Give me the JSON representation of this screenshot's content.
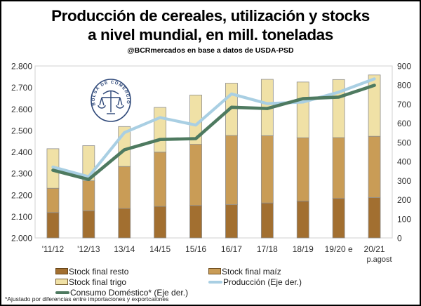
{
  "header": {
    "title_line1": "Producción de cereales, utilización y stocks",
    "title_line2": "a nivel mundial, en mill. toneladas",
    "subtitle": "@BCRmercados en base a datos de USDA-PSD"
  },
  "logo": {
    "ring_text": "BOLSA DE COMERCIO DE ROSARIO",
    "color": "#2d4778"
  },
  "chart_data": {
    "type": "bar",
    "subtype": "stacked bars (right axis) + two lines (left axis)",
    "title": "Producción de cereales, utilización y stocks a nivel mundial, en mill. toneladas",
    "source": "@BCRmercados en base a datos de USDA-PSD",
    "categories": [
      "'11/12",
      "'12/13",
      "13/14",
      "14/15",
      "15/16",
      "16/17",
      "17/18",
      "18/19",
      "19/20 e",
      "20/21"
    ],
    "category_sublabels": [
      "",
      "",
      "",
      "",
      "",
      "",
      "",
      "",
      "",
      "p.agost"
    ],
    "bar_series": [
      {
        "name": "Stock final resto",
        "axis": "right",
        "color": "#a26f30",
        "values": [
          133,
          142,
          154,
          165,
          170,
          174,
          183,
          193,
          207,
          211
        ]
      },
      {
        "name": "Stock final maíz",
        "axis": "right",
        "color": "#c99c56",
        "values": [
          127,
          157,
          220,
          284,
          320,
          362,
          352,
          331,
          318,
          321
        ]
      },
      {
        "name": "Stock final trigo",
        "axis": "right",
        "color": "#f0e1a6",
        "values": [
          207,
          184,
          209,
          234,
          258,
          274,
          295,
          292,
          304,
          321
        ]
      }
    ],
    "line_series": [
      {
        "name": "Producción (Eje der.)",
        "axis": "left",
        "color": "#a9cfe3",
        "width": 4.2,
        "values": [
          2330,
          2285,
          2490,
          2560,
          2525,
          2670,
          2625,
          2632,
          2678,
          2740
        ]
      },
      {
        "name": "Consumo Doméstico* (Eje der.)",
        "axis": "left",
        "color": "#4e7a60",
        "width": 4.6,
        "values": [
          2315,
          2272,
          2410,
          2458,
          2462,
          2608,
          2602,
          2648,
          2655,
          2710
        ]
      }
    ],
    "left_axis": {
      "min": 2000,
      "max": 2800,
      "step": 100,
      "tick_labels": [
        "2.000",
        "2.100",
        "2.200",
        "2.300",
        "2.400",
        "2.500",
        "2.600",
        "2.700",
        "2.800"
      ]
    },
    "right_axis": {
      "min": 0,
      "max": 900,
      "step": 100,
      "tick_labels": [
        "0",
        "100",
        "200",
        "300",
        "400",
        "500",
        "600",
        "700",
        "800",
        "900"
      ]
    },
    "grid": "off",
    "legend_position": "bottom",
    "plot_border_color": "#d9d9d9",
    "bar_outline_color": "#8f8f8f",
    "axis_text_color": "#303030"
  },
  "footnote": "*Ajustado por diferencias entre importaciones y exportcaiones"
}
